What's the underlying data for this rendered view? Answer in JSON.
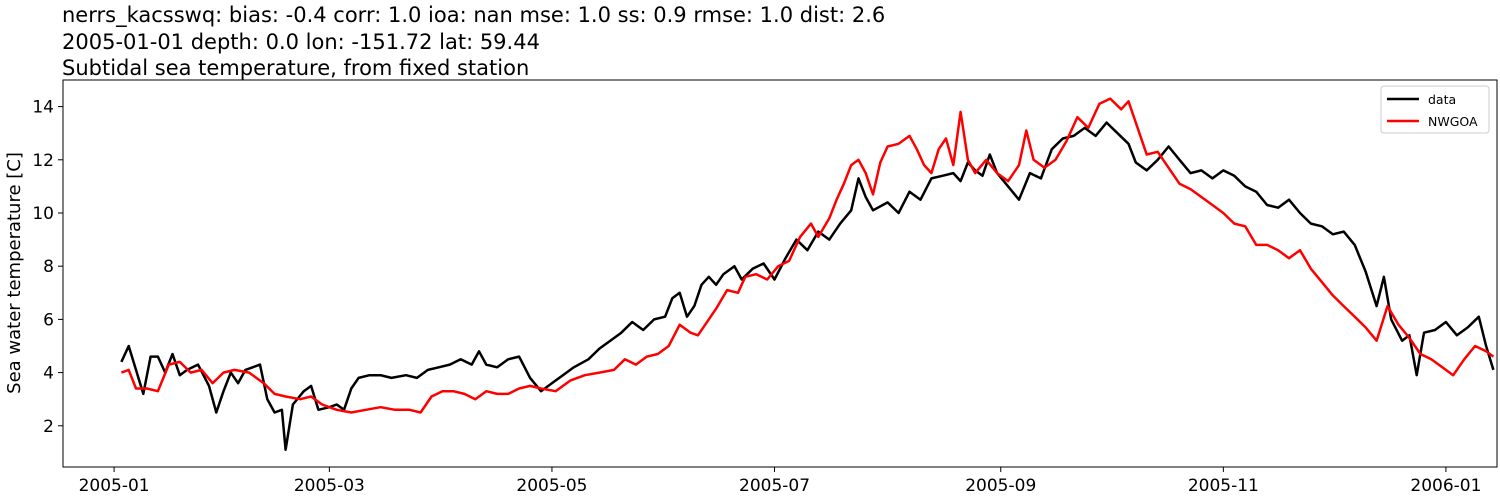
{
  "chart_data": {
    "type": "line",
    "title_lines": [
      "nerrs_kacsswq: bias: -0.4  corr: 1.0  ioa: nan  mse: 1.0  ss: 0.9  rmse: 1.0  dist: 2.6",
      "2005-01-01 depth: 0.0 lon: -151.72 lat: 59.44",
      "Subtidal sea temperature, from fixed station"
    ],
    "xlabel": "",
    "ylabel": "Sea water temperature [C]",
    "x_axis": {
      "type": "date",
      "range": [
        "2004-12-18",
        "2006-01-15"
      ],
      "ticks": [
        "2005-01",
        "2005-03",
        "2005-05",
        "2005-07",
        "2005-09",
        "2005-11",
        "2006-01"
      ]
    },
    "y_axis": {
      "range": [
        0.45,
        15.0
      ],
      "ticks": [
        2,
        4,
        6,
        8,
        10,
        12,
        14
      ]
    },
    "grid": false,
    "legend": {
      "position": "top-right"
    },
    "series": [
      {
        "name": "data",
        "color": "#000000",
        "points": [
          [
            "2005-01-03",
            4.4
          ],
          [
            "2005-01-05",
            5.0
          ],
          [
            "2005-01-07",
            4.1
          ],
          [
            "2005-01-09",
            3.2
          ],
          [
            "2005-01-11",
            4.6
          ],
          [
            "2005-01-13",
            4.6
          ],
          [
            "2005-01-15",
            4.0
          ],
          [
            "2005-01-17",
            4.7
          ],
          [
            "2005-01-19",
            3.9
          ],
          [
            "2005-01-21",
            4.1
          ],
          [
            "2005-01-24",
            4.3
          ],
          [
            "2005-01-27",
            3.5
          ],
          [
            "2005-01-29",
            2.5
          ],
          [
            "2005-01-31",
            3.3
          ],
          [
            "2005-02-02",
            4.0
          ],
          [
            "2005-02-04",
            3.6
          ],
          [
            "2005-02-06",
            4.1
          ],
          [
            "2005-02-08",
            4.2
          ],
          [
            "2005-02-10",
            4.3
          ],
          [
            "2005-02-12",
            3.0
          ],
          [
            "2005-02-14",
            2.5
          ],
          [
            "2005-02-16",
            2.6
          ],
          [
            "2005-02-17",
            1.1
          ],
          [
            "2005-02-19",
            2.8
          ],
          [
            "2005-02-22",
            3.3
          ],
          [
            "2005-02-24",
            3.5
          ],
          [
            "2005-02-26",
            2.6
          ],
          [
            "2005-03-01",
            2.7
          ],
          [
            "2005-03-03",
            2.8
          ],
          [
            "2005-03-05",
            2.6
          ],
          [
            "2005-03-07",
            3.4
          ],
          [
            "2005-03-09",
            3.8
          ],
          [
            "2005-03-12",
            3.9
          ],
          [
            "2005-03-15",
            3.9
          ],
          [
            "2005-03-18",
            3.8
          ],
          [
            "2005-03-22",
            3.9
          ],
          [
            "2005-03-25",
            3.8
          ],
          [
            "2005-03-28",
            4.1
          ],
          [
            "2005-03-31",
            4.2
          ],
          [
            "2005-04-03",
            4.3
          ],
          [
            "2005-04-06",
            4.5
          ],
          [
            "2005-04-09",
            4.3
          ],
          [
            "2005-04-11",
            4.8
          ],
          [
            "2005-04-13",
            4.3
          ],
          [
            "2005-04-16",
            4.2
          ],
          [
            "2005-04-19",
            4.5
          ],
          [
            "2005-04-22",
            4.6
          ],
          [
            "2005-04-25",
            3.8
          ],
          [
            "2005-04-28",
            3.3
          ],
          [
            "2005-05-01",
            3.6
          ],
          [
            "2005-05-04",
            3.9
          ],
          [
            "2005-05-07",
            4.2
          ],
          [
            "2005-05-11",
            4.5
          ],
          [
            "2005-05-14",
            4.9
          ],
          [
            "2005-05-17",
            5.2
          ],
          [
            "2005-05-20",
            5.5
          ],
          [
            "2005-05-23",
            5.9
          ],
          [
            "2005-05-26",
            5.6
          ],
          [
            "2005-05-29",
            6.0
          ],
          [
            "2005-06-01",
            6.1
          ],
          [
            "2005-06-03",
            6.8
          ],
          [
            "2005-06-05",
            7.0
          ],
          [
            "2005-06-07",
            6.1
          ],
          [
            "2005-06-09",
            6.5
          ],
          [
            "2005-06-11",
            7.3
          ],
          [
            "2005-06-13",
            7.6
          ],
          [
            "2005-06-15",
            7.3
          ],
          [
            "2005-06-17",
            7.7
          ],
          [
            "2005-06-20",
            8.0
          ],
          [
            "2005-06-22",
            7.5
          ],
          [
            "2005-06-25",
            7.9
          ],
          [
            "2005-06-28",
            8.1
          ],
          [
            "2005-07-01",
            7.5
          ],
          [
            "2005-07-04",
            8.3
          ],
          [
            "2005-07-07",
            9.0
          ],
          [
            "2005-07-10",
            8.6
          ],
          [
            "2005-07-13",
            9.3
          ],
          [
            "2005-07-16",
            9.0
          ],
          [
            "2005-07-19",
            9.6
          ],
          [
            "2005-07-22",
            10.1
          ],
          [
            "2005-07-24",
            11.3
          ],
          [
            "2005-07-26",
            10.6
          ],
          [
            "2005-07-28",
            10.1
          ],
          [
            "2005-08-01",
            10.4
          ],
          [
            "2005-08-04",
            10.0
          ],
          [
            "2005-08-07",
            10.8
          ],
          [
            "2005-08-10",
            10.5
          ],
          [
            "2005-08-13",
            11.3
          ],
          [
            "2005-08-16",
            11.4
          ],
          [
            "2005-08-19",
            11.5
          ],
          [
            "2005-08-21",
            11.2
          ],
          [
            "2005-08-23",
            11.9
          ],
          [
            "2005-08-25",
            11.6
          ],
          [
            "2005-08-27",
            11.4
          ],
          [
            "2005-08-29",
            12.2
          ],
          [
            "2005-08-31",
            11.5
          ],
          [
            "2005-09-03",
            11.0
          ],
          [
            "2005-09-06",
            10.5
          ],
          [
            "2005-09-09",
            11.5
          ],
          [
            "2005-09-12",
            11.3
          ],
          [
            "2005-09-15",
            12.4
          ],
          [
            "2005-09-18",
            12.8
          ],
          [
            "2005-09-21",
            12.9
          ],
          [
            "2005-09-24",
            13.2
          ],
          [
            "2005-09-27",
            12.9
          ],
          [
            "2005-09-30",
            13.4
          ],
          [
            "2005-10-03",
            13.0
          ],
          [
            "2005-10-06",
            12.6
          ],
          [
            "2005-10-08",
            11.9
          ],
          [
            "2005-10-11",
            11.6
          ],
          [
            "2005-10-14",
            12.0
          ],
          [
            "2005-10-17",
            12.5
          ],
          [
            "2005-10-20",
            12.0
          ],
          [
            "2005-10-23",
            11.5
          ],
          [
            "2005-10-26",
            11.6
          ],
          [
            "2005-10-29",
            11.3
          ],
          [
            "2005-11-01",
            11.6
          ],
          [
            "2005-11-04",
            11.4
          ],
          [
            "2005-11-07",
            11.0
          ],
          [
            "2005-11-10",
            10.8
          ],
          [
            "2005-11-13",
            10.3
          ],
          [
            "2005-11-16",
            10.2
          ],
          [
            "2005-11-19",
            10.5
          ],
          [
            "2005-11-22",
            10.0
          ],
          [
            "2005-11-25",
            9.6
          ],
          [
            "2005-11-28",
            9.5
          ],
          [
            "2005-12-01",
            9.2
          ],
          [
            "2005-12-04",
            9.3
          ],
          [
            "2005-12-07",
            8.8
          ],
          [
            "2005-12-10",
            7.8
          ],
          [
            "2005-12-13",
            6.5
          ],
          [
            "2005-12-15",
            7.6
          ],
          [
            "2005-12-17",
            6.0
          ],
          [
            "2005-12-20",
            5.2
          ],
          [
            "2005-12-22",
            5.4
          ],
          [
            "2005-12-24",
            3.9
          ],
          [
            "2005-12-26",
            5.5
          ],
          [
            "2005-12-29",
            5.6
          ],
          [
            "2006-01-01",
            5.9
          ],
          [
            "2006-01-04",
            5.4
          ],
          [
            "2006-01-07",
            5.7
          ],
          [
            "2006-01-10",
            6.1
          ],
          [
            "2006-01-12",
            5.0
          ],
          [
            "2006-01-14",
            4.1
          ]
        ]
      },
      {
        "name": "NWGOA",
        "color": "#ff0000",
        "points": [
          [
            "2005-01-03",
            4.0
          ],
          [
            "2005-01-05",
            4.1
          ],
          [
            "2005-01-07",
            3.4
          ],
          [
            "2005-01-10",
            3.4
          ],
          [
            "2005-01-13",
            3.3
          ],
          [
            "2005-01-16",
            4.3
          ],
          [
            "2005-01-19",
            4.4
          ],
          [
            "2005-01-22",
            4.0
          ],
          [
            "2005-01-25",
            4.1
          ],
          [
            "2005-01-28",
            3.6
          ],
          [
            "2005-01-31",
            4.0
          ],
          [
            "2005-02-03",
            4.1
          ],
          [
            "2005-02-07",
            4.0
          ],
          [
            "2005-02-11",
            3.6
          ],
          [
            "2005-02-14",
            3.2
          ],
          [
            "2005-02-17",
            3.1
          ],
          [
            "2005-02-21",
            3.0
          ],
          [
            "2005-02-24",
            3.1
          ],
          [
            "2005-02-27",
            2.8
          ],
          [
            "2005-03-03",
            2.6
          ],
          [
            "2005-03-07",
            2.5
          ],
          [
            "2005-03-11",
            2.6
          ],
          [
            "2005-03-15",
            2.7
          ],
          [
            "2005-03-19",
            2.6
          ],
          [
            "2005-03-23",
            2.6
          ],
          [
            "2005-03-26",
            2.5
          ],
          [
            "2005-03-29",
            3.1
          ],
          [
            "2005-04-01",
            3.3
          ],
          [
            "2005-04-04",
            3.3
          ],
          [
            "2005-04-07",
            3.2
          ],
          [
            "2005-04-10",
            3.0
          ],
          [
            "2005-04-13",
            3.3
          ],
          [
            "2005-04-16",
            3.2
          ],
          [
            "2005-04-19",
            3.2
          ],
          [
            "2005-04-22",
            3.4
          ],
          [
            "2005-04-25",
            3.5
          ],
          [
            "2005-04-28",
            3.4
          ],
          [
            "2005-05-02",
            3.3
          ],
          [
            "2005-05-06",
            3.7
          ],
          [
            "2005-05-10",
            3.9
          ],
          [
            "2005-05-14",
            4.0
          ],
          [
            "2005-05-18",
            4.1
          ],
          [
            "2005-05-21",
            4.5
          ],
          [
            "2005-05-24",
            4.3
          ],
          [
            "2005-05-27",
            4.6
          ],
          [
            "2005-05-30",
            4.7
          ],
          [
            "2005-06-02",
            5.0
          ],
          [
            "2005-06-05",
            5.8
          ],
          [
            "2005-06-08",
            5.5
          ],
          [
            "2005-06-10",
            5.4
          ],
          [
            "2005-06-13",
            6.0
          ],
          [
            "2005-06-15",
            6.4
          ],
          [
            "2005-06-18",
            7.1
          ],
          [
            "2005-06-21",
            7.0
          ],
          [
            "2005-06-23",
            7.6
          ],
          [
            "2005-06-26",
            7.7
          ],
          [
            "2005-06-29",
            7.5
          ],
          [
            "2005-07-02",
            8.0
          ],
          [
            "2005-07-05",
            8.2
          ],
          [
            "2005-07-08",
            9.1
          ],
          [
            "2005-07-11",
            9.6
          ],
          [
            "2005-07-13",
            9.1
          ],
          [
            "2005-07-16",
            9.8
          ],
          [
            "2005-07-18",
            10.5
          ],
          [
            "2005-07-20",
            11.1
          ],
          [
            "2005-07-22",
            11.8
          ],
          [
            "2005-07-24",
            12.0
          ],
          [
            "2005-07-26",
            11.5
          ],
          [
            "2005-07-28",
            10.7
          ],
          [
            "2005-07-30",
            11.9
          ],
          [
            "2005-08-01",
            12.5
          ],
          [
            "2005-08-04",
            12.6
          ],
          [
            "2005-08-07",
            12.9
          ],
          [
            "2005-08-09",
            12.4
          ],
          [
            "2005-08-11",
            11.8
          ],
          [
            "2005-08-13",
            11.5
          ],
          [
            "2005-08-15",
            12.4
          ],
          [
            "2005-08-17",
            12.8
          ],
          [
            "2005-08-19",
            11.8
          ],
          [
            "2005-08-21",
            13.8
          ],
          [
            "2005-08-23",
            12.0
          ],
          [
            "2005-08-25",
            11.5
          ],
          [
            "2005-08-28",
            12.0
          ],
          [
            "2005-08-31",
            11.5
          ],
          [
            "2005-09-03",
            11.2
          ],
          [
            "2005-09-06",
            11.8
          ],
          [
            "2005-09-08",
            13.1
          ],
          [
            "2005-09-10",
            12.0
          ],
          [
            "2005-09-13",
            11.7
          ],
          [
            "2005-09-16",
            12.0
          ],
          [
            "2005-09-19",
            12.7
          ],
          [
            "2005-09-22",
            13.6
          ],
          [
            "2005-09-25",
            13.2
          ],
          [
            "2005-09-28",
            14.1
          ],
          [
            "2005-10-01",
            14.3
          ],
          [
            "2005-10-04",
            13.9
          ],
          [
            "2005-10-06",
            14.2
          ],
          [
            "2005-10-08",
            13.4
          ],
          [
            "2005-10-11",
            12.2
          ],
          [
            "2005-10-14",
            12.3
          ],
          [
            "2005-10-17",
            11.7
          ],
          [
            "2005-10-20",
            11.1
          ],
          [
            "2005-10-23",
            10.9
          ],
          [
            "2005-10-26",
            10.6
          ],
          [
            "2005-10-29",
            10.3
          ],
          [
            "2005-11-01",
            10.0
          ],
          [
            "2005-11-04",
            9.6
          ],
          [
            "2005-11-07",
            9.5
          ],
          [
            "2005-11-10",
            8.8
          ],
          [
            "2005-11-13",
            8.8
          ],
          [
            "2005-11-16",
            8.6
          ],
          [
            "2005-11-19",
            8.3
          ],
          [
            "2005-11-22",
            8.6
          ],
          [
            "2005-11-25",
            7.9
          ],
          [
            "2005-11-28",
            7.4
          ],
          [
            "2005-12-01",
            6.9
          ],
          [
            "2005-12-04",
            6.5
          ],
          [
            "2005-12-07",
            6.1
          ],
          [
            "2005-12-10",
            5.7
          ],
          [
            "2005-12-13",
            5.2
          ],
          [
            "2005-12-16",
            6.5
          ],
          [
            "2005-12-19",
            5.8
          ],
          [
            "2005-12-22",
            5.3
          ],
          [
            "2005-12-25",
            4.7
          ],
          [
            "2005-12-28",
            4.5
          ],
          [
            "2005-12-31",
            4.2
          ],
          [
            "2006-01-03",
            3.9
          ],
          [
            "2006-01-06",
            4.5
          ],
          [
            "2006-01-09",
            5.0
          ],
          [
            "2006-01-12",
            4.8
          ],
          [
            "2006-01-14",
            4.6
          ]
        ]
      }
    ]
  }
}
